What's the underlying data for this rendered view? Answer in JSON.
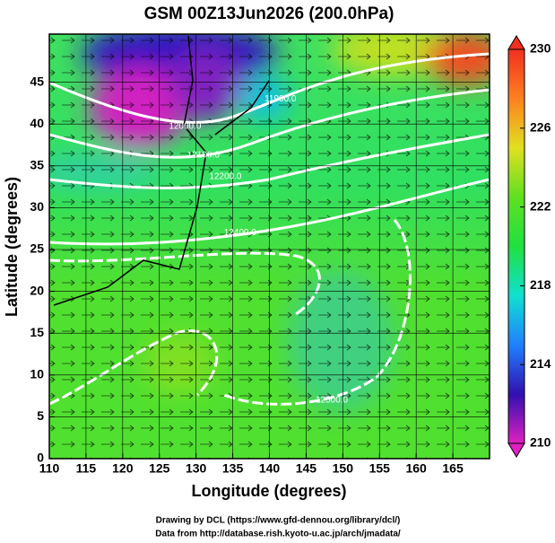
{
  "chart_data": {
    "type": "contour",
    "title": "GSM 00Z13Jun2026 (200.0hPa)",
    "x_label": "Longitude (degrees)",
    "y_label": "Latitude  (degrees)",
    "xlim": [
      110,
      170
    ],
    "ylim": [
      0,
      50.75
    ],
    "xticks": [
      110,
      115,
      120,
      125,
      130,
      135,
      140,
      145,
      150,
      155,
      160,
      165
    ],
    "yticks": [
      0,
      5,
      10,
      15,
      20,
      25,
      30,
      35,
      40,
      45
    ],
    "grid": true,
    "colorbar": {
      "clim": [
        210,
        230
      ],
      "ticks": [
        210,
        214,
        218,
        222,
        226,
        230
      ],
      "colors": [
        "#e020c0",
        "#3010b0",
        "#2080ff",
        "#10e0d0",
        "#20e040",
        "#60e020",
        "#e0e020",
        "#ff8020",
        "#f03020"
      ]
    },
    "annotations": [
      {
        "text": "11900.0",
        "x": 141.5,
        "y": 43
      },
      {
        "text": "12000.0",
        "x": 128.5,
        "y": 39.7
      },
      {
        "text": "12100.0",
        "x": 131,
        "y": 36.3
      },
      {
        "text": "12200.0",
        "x": 134,
        "y": 33.7
      },
      {
        "text": "12400.0",
        "x": 136,
        "y": 27
      },
      {
        "text": "12500.0",
        "x": 148.5,
        "y": 7
      }
    ],
    "footer": [
      "Drawing by DCL (https://www.gfd-dennou.org/library/dcl/)",
      "Data from http://database.rish.kyoto-u.ac.jp/arch/jmadata/"
    ]
  }
}
